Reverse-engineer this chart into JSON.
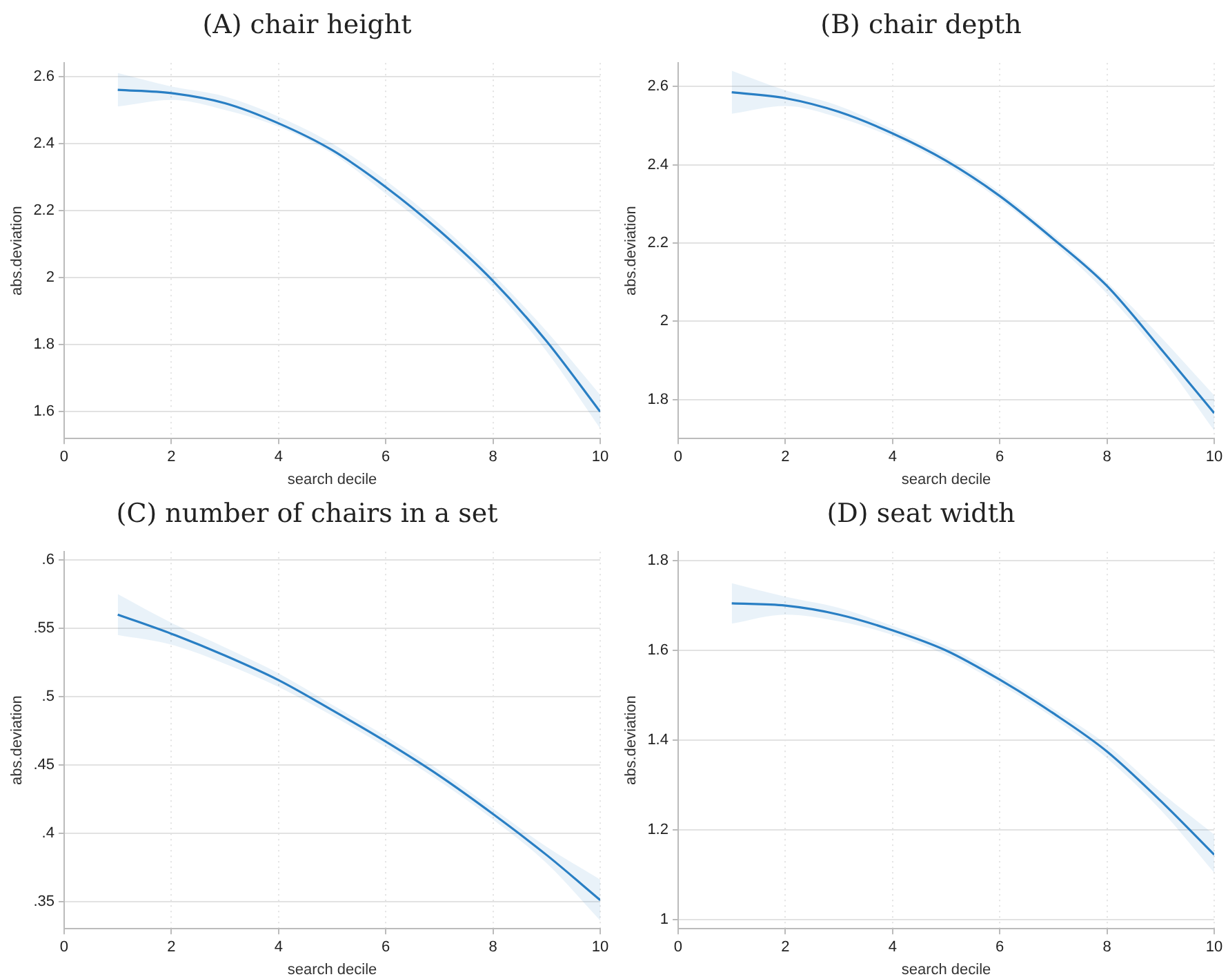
{
  "chart_data": [
    {
      "type": "line",
      "title": "(A) chair height",
      "xlabel": "search decile",
      "ylabel": "abs.deviation",
      "x": [
        1,
        2,
        3,
        4,
        5,
        6,
        7,
        8,
        9,
        10
      ],
      "xlim": [
        0,
        10
      ],
      "xticks": [
        0,
        2,
        4,
        6,
        8,
        10
      ],
      "ylim": [
        1.52,
        2.64
      ],
      "yticks": [
        1.6,
        1.8,
        {
          "value": 2,
          "label": "2"
        },
        2.2,
        2.4,
        2.6
      ],
      "grid": true,
      "marker": "none",
      "line_style": "solid",
      "series": [
        {
          "color": "#2a7fc4",
          "values": [
            2.56,
            2.55,
            2.52,
            2.46,
            2.38,
            2.27,
            2.14,
            1.99,
            1.81,
            1.6
          ],
          "lower": [
            2.51,
            2.53,
            2.5,
            2.45,
            2.37,
            2.25,
            2.12,
            1.97,
            1.78,
            1.55
          ],
          "upper": [
            2.61,
            2.57,
            2.54,
            2.48,
            2.4,
            2.29,
            2.16,
            2.01,
            1.84,
            1.65
          ]
        }
      ]
    },
    {
      "type": "line",
      "title": "(B) chair depth",
      "xlabel": "search decile",
      "ylabel": "abs.deviation",
      "x": [
        1,
        2,
        3,
        4,
        5,
        6,
        7,
        8,
        9,
        10
      ],
      "xlim": [
        0,
        10
      ],
      "xticks": [
        0,
        2,
        4,
        6,
        8,
        10
      ],
      "ylim": [
        1.7,
        2.66
      ],
      "yticks": [
        1.8,
        {
          "value": 2,
          "label": "2"
        },
        2.2,
        2.4,
        2.6
      ],
      "grid": true,
      "marker": "none",
      "line_style": "solid",
      "series": [
        {
          "color": "#2a7fc4",
          "values": [
            2.585,
            2.57,
            2.535,
            2.48,
            2.41,
            2.32,
            2.21,
            2.09,
            1.93,
            1.765
          ],
          "lower": [
            2.53,
            2.55,
            2.52,
            2.47,
            2.4,
            2.31,
            2.2,
            2.07,
            1.91,
            1.72
          ],
          "upper": [
            2.64,
            2.59,
            2.55,
            2.49,
            2.42,
            2.33,
            2.22,
            2.1,
            1.96,
            1.81
          ]
        }
      ]
    },
    {
      "type": "line",
      "title": "(C) number of chairs in a set",
      "xlabel": "search decile",
      "ylabel": "abs.deviation",
      "x": [
        1,
        2,
        3,
        4,
        5,
        6,
        7,
        8,
        9,
        10
      ],
      "xlim": [
        0,
        10
      ],
      "xticks": [
        0,
        2,
        4,
        6,
        8,
        10
      ],
      "ylim": [
        0.33,
        0.606
      ],
      "yticks": [
        {
          "value": 0.35,
          "label": ".35"
        },
        {
          "value": 0.4,
          "label": ".4"
        },
        {
          "value": 0.45,
          "label": ".45"
        },
        {
          "value": 0.5,
          "label": ".5"
        },
        {
          "value": 0.55,
          "label": ".55"
        },
        {
          "value": 0.6,
          "label": ".6"
        }
      ],
      "grid": true,
      "marker": "none",
      "line_style": "solid",
      "series": [
        {
          "color": "#2a7fc4",
          "values": [
            0.56,
            0.546,
            0.53,
            0.512,
            0.49,
            0.467,
            0.442,
            0.414,
            0.384,
            0.351
          ],
          "lower": [
            0.545,
            0.538,
            0.524,
            0.507,
            0.486,
            0.463,
            0.438,
            0.41,
            0.378,
            0.336
          ],
          "upper": [
            0.575,
            0.554,
            0.536,
            0.517,
            0.494,
            0.471,
            0.446,
            0.418,
            0.39,
            0.366
          ]
        }
      ]
    },
    {
      "type": "line",
      "title": "(D) seat width",
      "xlabel": "search decile",
      "ylabel": "abs.deviation",
      "x": [
        1,
        2,
        3,
        4,
        5,
        6,
        7,
        8,
        9,
        10
      ],
      "xlim": [
        0,
        10
      ],
      "xticks": [
        0,
        2,
        4,
        6,
        8,
        10
      ],
      "ylim": [
        0.98,
        1.82
      ],
      "yticks": [
        {
          "value": 1,
          "label": "1"
        },
        1.2,
        1.4,
        1.6,
        1.8
      ],
      "grid": true,
      "marker": "none",
      "line_style": "solid",
      "series": [
        {
          "color": "#2a7fc4",
          "values": [
            1.705,
            1.7,
            1.68,
            1.645,
            1.6,
            1.535,
            1.46,
            1.375,
            1.265,
            1.145
          ],
          "lower": [
            1.66,
            1.68,
            1.665,
            1.635,
            1.59,
            1.525,
            1.45,
            1.36,
            1.245,
            1.105
          ],
          "upper": [
            1.75,
            1.72,
            1.695,
            1.655,
            1.61,
            1.545,
            1.47,
            1.39,
            1.285,
            1.19
          ]
        }
      ]
    }
  ]
}
